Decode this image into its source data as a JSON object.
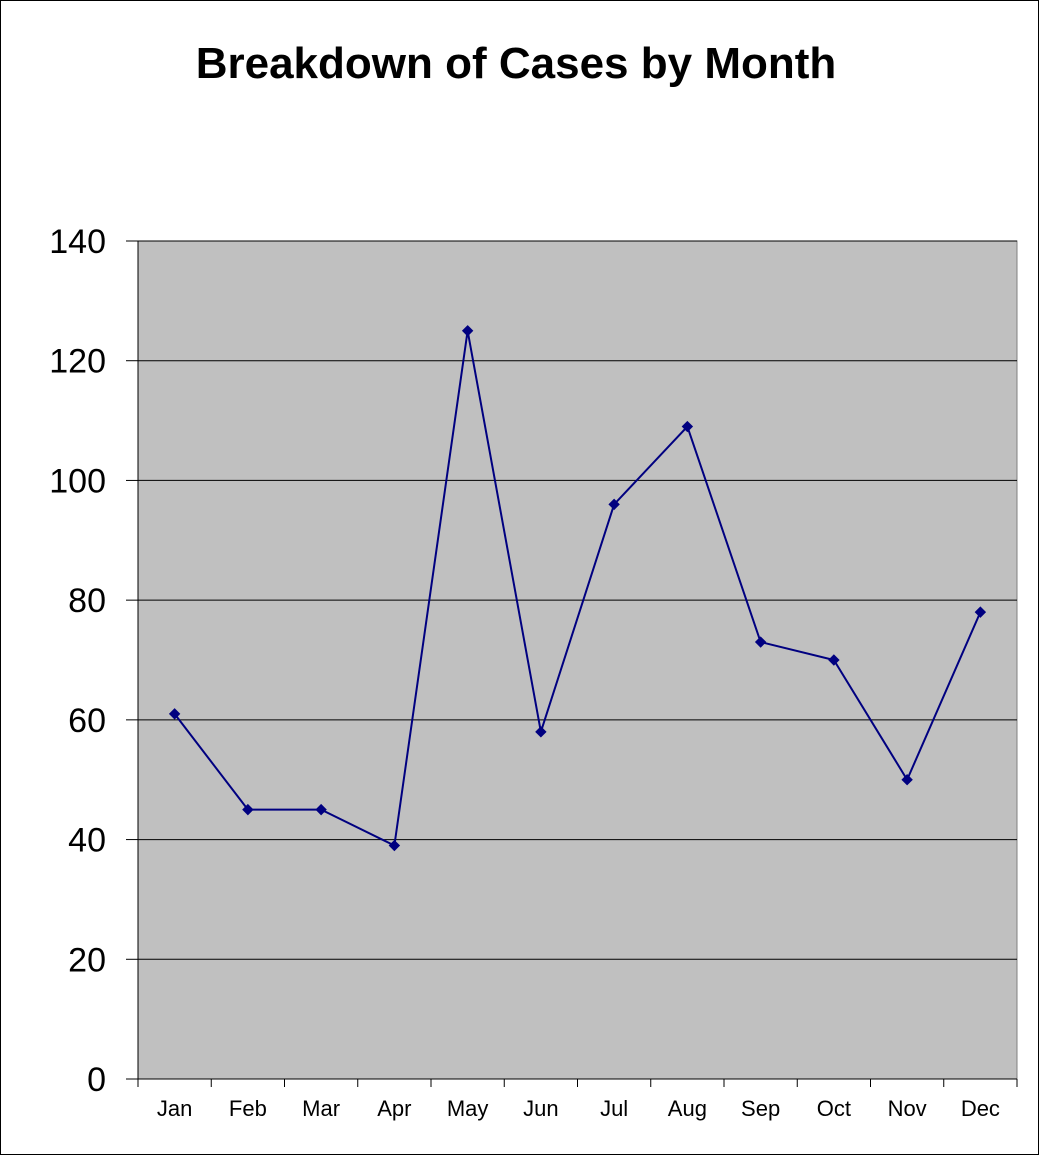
{
  "chart_data": {
    "type": "line",
    "title": "Breakdown of Cases by Month",
    "xlabel": "",
    "ylabel": "",
    "categories": [
      "Jan",
      "Feb",
      "Mar",
      "Apr",
      "May",
      "Jun",
      "Jul",
      "Aug",
      "Sep",
      "Oct",
      "Nov",
      "Dec"
    ],
    "series": [
      {
        "values": [
          61,
          45,
          45,
          39,
          125,
          58,
          96,
          109,
          73,
          70,
          50,
          78
        ]
      }
    ],
    "ylim": [
      0,
      140
    ],
    "yticks": [
      0,
      20,
      40,
      60,
      80,
      100,
      120,
      140
    ],
    "grid": true,
    "legend": "none",
    "colors": {
      "line": "#000080",
      "marker": "#000080",
      "plot_background": "#c0c0c0",
      "gridline": "#000000"
    }
  }
}
